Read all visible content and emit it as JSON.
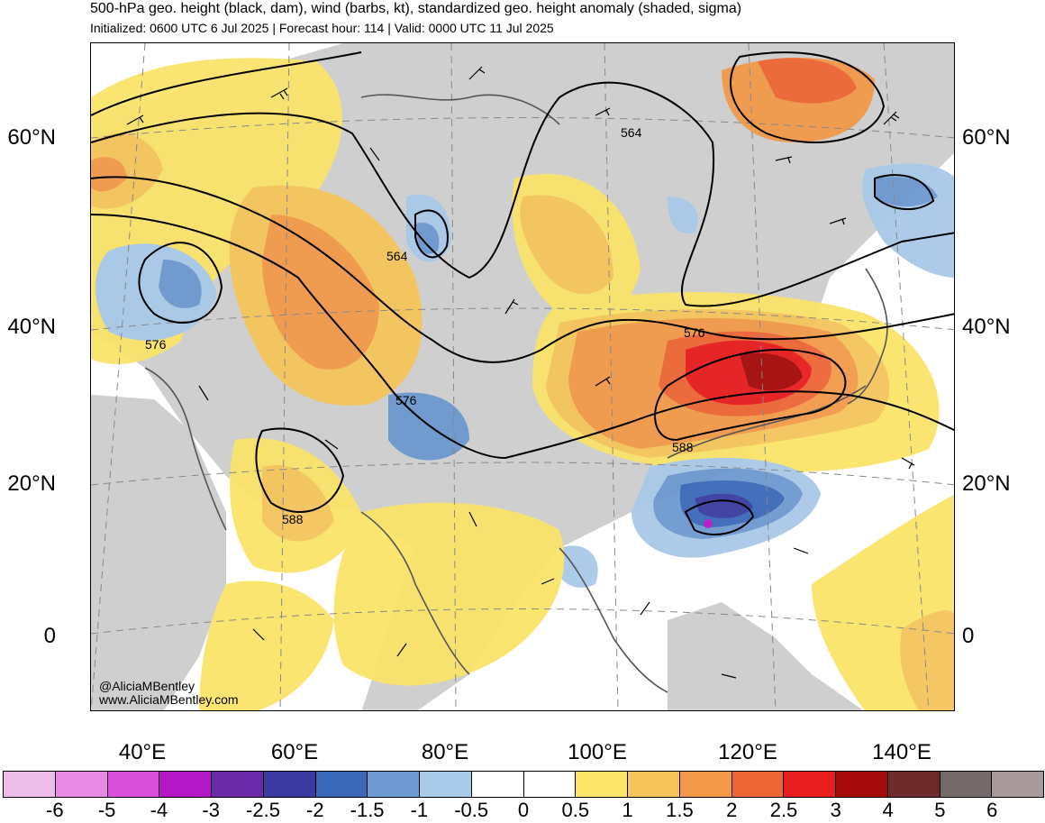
{
  "header": {
    "title": "500-hPa geo. height (black, dam), wind (barbs, kt), standardized geo. height anomaly (shaded, sigma)",
    "subtitle": "Initialized: 0600 UTC 6 Jul 2025 | Forecast hour: 114 | Valid: 0000 UTC 11 Jul 2025"
  },
  "credits": {
    "handle": "@AliciaMBentley",
    "website": "www.AliciaMBentley.com"
  },
  "latitude_labels": [
    "60°N",
    "40°N",
    "20°N",
    "0"
  ],
  "longitude_labels": [
    "40°E",
    "60°E",
    "80°E",
    "100°E",
    "120°E",
    "140°E"
  ],
  "contour_labels": [
    {
      "id": "c564-north",
      "text": "564"
    },
    {
      "id": "c564-central",
      "text": "564"
    },
    {
      "id": "c576-west",
      "text": "576"
    },
    {
      "id": "c576-central",
      "text": "576"
    },
    {
      "id": "c576-east",
      "text": "576"
    },
    {
      "id": "c588-east",
      "text": "588"
    },
    {
      "id": "c588-west",
      "text": "588"
    }
  ],
  "colorbar": {
    "labels": [
      "-6",
      "-5",
      "-4",
      "-3",
      "-2.5",
      "-2",
      "-1.5",
      "-1",
      "-0.5",
      "0",
      "0.5",
      "1",
      "1.5",
      "2",
      "2.5",
      "3",
      "4",
      "5",
      "6"
    ],
    "colors": [
      "#ecbde8",
      "#e68ae4",
      "#d94fd9",
      "#b417c6",
      "#6a2aa8",
      "#3a3aa0",
      "#3b68b8",
      "#6d98d0",
      "#a9c9e8",
      "#ffffff",
      "#ffffff",
      "#fbe46a",
      "#f5c55c",
      "#f29a4a",
      "#ee6636",
      "#e81e1e",
      "#a50a0a",
      "#6e2b2b",
      "#756a6a",
      "#a89a9a"
    ]
  },
  "map_colors": {
    "land_gray": "#cfcfcf",
    "ocean": "#ffffff",
    "contour": "#000000",
    "coast": "#555555",
    "grid": "#888888"
  }
}
